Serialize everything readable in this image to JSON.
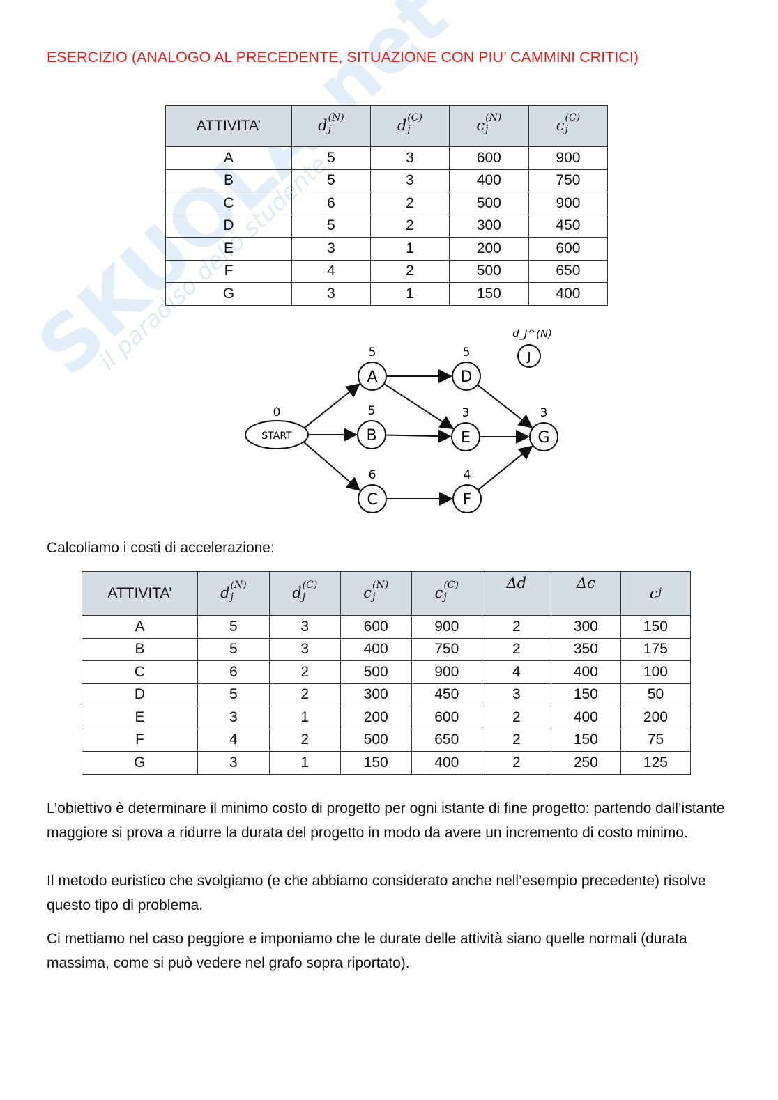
{
  "watermark": {
    "logo": "SKUOLA.net",
    "tagline": "il paradiso dello studente"
  },
  "title": "ESERCIZIO (ANALOGO AL PRECEDENTE, SITUAZIONE CON PIU’ CAMMINI CRITICI)",
  "table1": {
    "headers": [
      {
        "text": "ATTIVITA’"
      },
      {
        "base": "d",
        "sup": "(N)",
        "sub": "j"
      },
      {
        "base": "d",
        "sup": "(C)",
        "sub": "j"
      },
      {
        "base": "c",
        "sup": "(N)",
        "sub": "j"
      },
      {
        "base": "c",
        "sup": "(C)",
        "sub": "j"
      }
    ],
    "rows": [
      [
        "A",
        "5",
        "3",
        "600",
        "900"
      ],
      [
        "B",
        "5",
        "3",
        "400",
        "750"
      ],
      [
        "C",
        "6",
        "2",
        "500",
        "900"
      ],
      [
        "D",
        "5",
        "2",
        "300",
        "450"
      ],
      [
        "E",
        "3",
        "1",
        "200",
        "600"
      ],
      [
        "F",
        "4",
        "2",
        "500",
        "650"
      ],
      [
        "G",
        "3",
        "1",
        "150",
        "400"
      ]
    ]
  },
  "diagram": {
    "legend": {
      "label": "d_J^(N)",
      "node": "J"
    },
    "nodes": [
      {
        "id": "START",
        "label": "START",
        "duration": "0"
      },
      {
        "id": "A",
        "label": "A",
        "duration": "5"
      },
      {
        "id": "B",
        "label": "B",
        "duration": "5"
      },
      {
        "id": "C",
        "label": "C",
        "duration": "6"
      },
      {
        "id": "D",
        "label": "D",
        "duration": "5"
      },
      {
        "id": "E",
        "label": "E",
        "duration": "3"
      },
      {
        "id": "F",
        "label": "F",
        "duration": "4"
      },
      {
        "id": "G",
        "label": "G",
        "duration": "3"
      }
    ],
    "edges": [
      [
        "START",
        "A"
      ],
      [
        "START",
        "B"
      ],
      [
        "START",
        "C"
      ],
      [
        "A",
        "D"
      ],
      [
        "A",
        "E"
      ],
      [
        "B",
        "E"
      ],
      [
        "C",
        "F"
      ],
      [
        "D",
        "G"
      ],
      [
        "E",
        "G"
      ],
      [
        "F",
        "G"
      ]
    ]
  },
  "intro_text": "Calcoliamo i costi di accelerazione:",
  "table2": {
    "headers": [
      {
        "text": "ATTIVITA’"
      },
      {
        "base": "d",
        "sup": "(N)",
        "sub": "j"
      },
      {
        "base": "d",
        "sup": "(C)",
        "sub": "j"
      },
      {
        "base": "c",
        "sup": "(N)",
        "sub": "j"
      },
      {
        "base": "c",
        "sup": "(C)",
        "sub": "j"
      },
      {
        "math": "Δd"
      },
      {
        "math": "Δc"
      },
      {
        "base": "c",
        "sup": "",
        "sub": "j"
      }
    ],
    "rows": [
      [
        "A",
        "5",
        "3",
        "600",
        "900",
        "2",
        "300",
        "150"
      ],
      [
        "B",
        "5",
        "3",
        "400",
        "750",
        "2",
        "350",
        "175"
      ],
      [
        "C",
        "6",
        "2",
        "500",
        "900",
        "4",
        "400",
        "100"
      ],
      [
        "D",
        "5",
        "2",
        "300",
        "450",
        "3",
        "150",
        "50"
      ],
      [
        "E",
        "3",
        "1",
        "200",
        "600",
        "2",
        "400",
        "200"
      ],
      [
        "F",
        "4",
        "2",
        "500",
        "650",
        "2",
        "150",
        "75"
      ],
      [
        "G",
        "3",
        "1",
        "150",
        "400",
        "2",
        "250",
        "125"
      ]
    ]
  },
  "paragraphs": [
    "L’obiettivo è determinare il minimo costo di progetto per ogni istante di fine progetto: partendo dall’istante maggiore si prova a ridurre la durata del progetto in modo da avere un incremento di costo minimo.",
    "Il metodo euristico che svolgiamo (e che abbiamo considerato anche nell’esempio precedente) risolve questo tipo di problema.",
    "Ci mettiamo nel caso peggiore e imponiamo che le durate delle attività siano quelle normali (durata massima, come si può vedere nel grafo sopra riportato)."
  ]
}
